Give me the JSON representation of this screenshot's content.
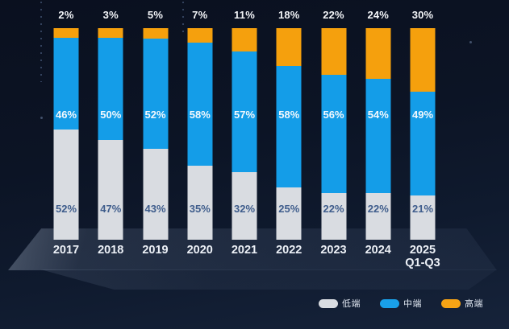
{
  "chart_data": {
    "type": "bar",
    "stacked": true,
    "title": "",
    "xlabel": "",
    "ylabel": "",
    "ylim": [
      0,
      100
    ],
    "grid": false,
    "value_suffix": "%",
    "legend_position": "bottom-right",
    "categories": [
      "2017",
      "2018",
      "2019",
      "2020",
      "2021",
      "2022",
      "2023",
      "2024",
      "2025 Q1-Q3"
    ],
    "category_lines": [
      [
        "2017"
      ],
      [
        "2018"
      ],
      [
        "2019"
      ],
      [
        "2020"
      ],
      [
        "2021"
      ],
      [
        "2022"
      ],
      [
        "2023"
      ],
      [
        "2024"
      ],
      [
        "2025",
        "Q1-Q3"
      ]
    ],
    "series": [
      {
        "name": "低端",
        "key": "low-end",
        "color": "#d9dce1",
        "label_color": "#3f5d8c",
        "values": [
          52,
          47,
          43,
          35,
          32,
          25,
          22,
          22,
          21
        ]
      },
      {
        "name": "中端",
        "key": "mid-range",
        "color": "#149de8",
        "label_color": "#f2f8fd",
        "values": [
          46,
          50,
          52,
          58,
          57,
          58,
          56,
          54,
          49
        ]
      },
      {
        "name": "高端",
        "key": "high-end",
        "color": "#f5a00d",
        "label_color": "#f3f5f8",
        "values": [
          2,
          3,
          5,
          7,
          11,
          18,
          22,
          24,
          30
        ]
      }
    ],
    "top_labels": [
      "2%",
      "3%",
      "5%",
      "7%",
      "11%",
      "18%",
      "22%",
      "24%",
      "30%"
    ],
    "mid_labels": [
      "46%",
      "50%",
      "52%",
      "58%",
      "57%",
      "58%",
      "56%",
      "54%",
      "49%"
    ],
    "low_labels": [
      "52%",
      "47%",
      "43%",
      "35%",
      "32%",
      "25%",
      "22%",
      "22%",
      "21%"
    ]
  },
  "legend": {
    "items": [
      {
        "label": "低端",
        "color": "#d9dce1"
      },
      {
        "label": "中端",
        "color": "#19a0e9"
      },
      {
        "label": "高端",
        "color": "#f5a315"
      }
    ]
  },
  "colors": {
    "background_top": "#0a101f",
    "background_bottom": "#16233a",
    "bar_low": "#d9dce1",
    "bar_mid": "#149de8",
    "bar_high": "#f5a00d",
    "low_label_text": "#3f5d8c",
    "white_text": "#f3f5f8"
  }
}
